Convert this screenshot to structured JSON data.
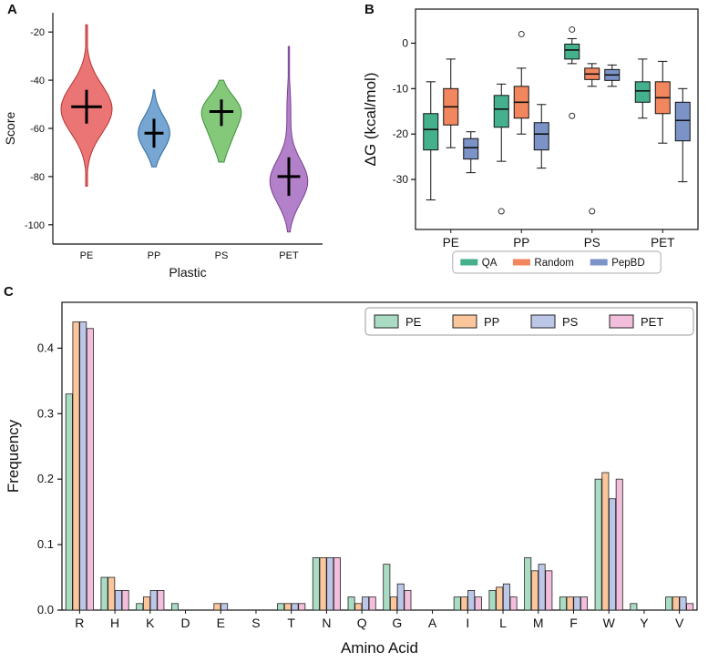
{
  "panels": {
    "a_label": "A",
    "b_label": "B",
    "c_label": "C"
  },
  "chart_data": [
    {
      "id": "panel-a",
      "type": "violin",
      "title": "",
      "xlabel": "Plastic",
      "ylabel": "Score",
      "categories": [
        "PE",
        "PP",
        "PS",
        "PET"
      ],
      "ylim": [
        -108,
        -12
      ],
      "yticks": [
        -20,
        -40,
        -60,
        -80,
        -100
      ],
      "violins": [
        {
          "category": "PE",
          "fill": "#e85d5d",
          "edge": "#b53333",
          "min": -84,
          "max": -17,
          "median": -51,
          "iqr": [
            -58,
            -44
          ],
          "width": 1.0,
          "shape": [
            {
              "mu": -52,
              "s": 10,
              "w": 1
            }
          ]
        },
        {
          "category": "PP",
          "fill": "#5e96c9",
          "edge": "#2f6aa0",
          "min": -76,
          "max": -44,
          "median": -62,
          "iqr": [
            -68,
            -56
          ],
          "width": 0.62,
          "shape": [
            {
              "mu": -62,
              "s": 7,
              "w": 1
            }
          ]
        },
        {
          "category": "PS",
          "fill": "#6fbf63",
          "edge": "#3f8f3a",
          "min": -74,
          "max": -40,
          "median": -53,
          "iqr": [
            -59,
            -48
          ],
          "width": 0.78,
          "shape": [
            {
              "mu": -52,
              "s": 6,
              "w": 1
            },
            {
              "mu": -63,
              "s": 7,
              "w": 0.55
            }
          ]
        },
        {
          "category": "PET",
          "fill": "#a66bbf",
          "edge": "#7a3f96",
          "min": -103,
          "max": -26,
          "median": -80,
          "iqr": [
            -88,
            -72
          ],
          "width": 0.74,
          "shape": [
            {
              "mu": -82,
              "s": 9,
              "w": 1
            },
            {
              "mu": -52,
              "s": 9,
              "w": 0.1
            }
          ]
        }
      ]
    },
    {
      "id": "panel-b",
      "type": "box",
      "title": "",
      "xlabel": "",
      "ylabel": "ΔG (kcal/mol)",
      "categories": [
        "PE",
        "PP",
        "PS",
        "PET"
      ],
      "ylim": [
        -41,
        7.5
      ],
      "yticks": [
        0,
        -10,
        -20,
        -30
      ],
      "legend_position": "bottom",
      "series": [
        {
          "name": "QA",
          "fill": "#45b08d",
          "boxes": [
            {
              "whislo": -34.5,
              "q1": -23.5,
              "med": -19,
              "q3": -15.5,
              "whishi": -8.5,
              "fliers": []
            },
            {
              "whislo": -26,
              "q1": -18.5,
              "med": -14.5,
              "q3": -11.5,
              "whishi": -9,
              "fliers": [
                -37
              ]
            },
            {
              "whislo": -4.5,
              "q1": -3.5,
              "med": -1.5,
              "q3": -0.2,
              "whishi": 1,
              "fliers": [
                3,
                -16
              ]
            },
            {
              "whislo": -16.5,
              "q1": -13,
              "med": -10.5,
              "q3": -8.5,
              "whishi": -3.5,
              "fliers": []
            }
          ]
        },
        {
          "name": "Random",
          "fill": "#f2875f",
          "boxes": [
            {
              "whislo": -23,
              "q1": -18,
              "med": -14,
              "q3": -10,
              "whishi": -3.5,
              "fliers": []
            },
            {
              "whislo": -20,
              "q1": -16.5,
              "med": -13,
              "q3": -9.5,
              "whishi": -5.5,
              "fliers": [
                2
              ]
            },
            {
              "whislo": -9.5,
              "q1": -8,
              "med": -6.8,
              "q3": -5.5,
              "whishi": -4.5,
              "fliers": [
                -37
              ]
            },
            {
              "whislo": -22,
              "q1": -15.5,
              "med": -12,
              "q3": -8.5,
              "whishi": -4,
              "fliers": []
            }
          ]
        },
        {
          "name": "PepBD",
          "fill": "#7b93c7",
          "boxes": [
            {
              "whislo": -28.5,
              "q1": -25.5,
              "med": -23,
              "q3": -21,
              "whishi": -19.5,
              "fliers": []
            },
            {
              "whislo": -27.5,
              "q1": -23.5,
              "med": -20,
              "q3": -17.5,
              "whishi": -13.5,
              "fliers": []
            },
            {
              "whislo": -9.5,
              "q1": -8.2,
              "med": -7,
              "q3": -5.8,
              "whishi": -4.8,
              "fliers": []
            },
            {
              "whislo": -30.5,
              "q1": -21.5,
              "med": -17,
              "q3": -13,
              "whishi": -10,
              "fliers": []
            }
          ]
        }
      ]
    },
    {
      "id": "panel-c",
      "type": "bar",
      "title": "",
      "xlabel": "Amino Acid",
      "ylabel": "Frequency",
      "categories": [
        "R",
        "H",
        "K",
        "D",
        "E",
        "S",
        "T",
        "N",
        "Q",
        "G",
        "A",
        "I",
        "L",
        "M",
        "F",
        "W",
        "Y",
        "V"
      ],
      "ylim": [
        0,
        0.47
      ],
      "yticks": [
        0.0,
        0.1,
        0.2,
        0.3,
        0.4
      ],
      "legend_position": "top-right",
      "series": [
        {
          "name": "PE",
          "fill": "#a9dcc3",
          "values": [
            0.33,
            0.05,
            0.01,
            0.01,
            0,
            0,
            0.01,
            0.08,
            0.02,
            0.07,
            0,
            0.02,
            0.03,
            0.08,
            0.02,
            0.2,
            0.01,
            0.02
          ]
        },
        {
          "name": "PP",
          "fill": "#fbc69b",
          "values": [
            0.44,
            0.05,
            0.02,
            0,
            0.01,
            0,
            0.01,
            0.08,
            0.01,
            0.02,
            0,
            0.02,
            0.035,
            0.06,
            0.02,
            0.21,
            0,
            0.02
          ]
        },
        {
          "name": "PS",
          "fill": "#bcc7e8",
          "values": [
            0.44,
            0.03,
            0.03,
            0,
            0.01,
            0,
            0.01,
            0.08,
            0.02,
            0.04,
            0,
            0.03,
            0.04,
            0.07,
            0.02,
            0.17,
            0,
            0.02
          ]
        },
        {
          "name": "PET",
          "fill": "#f3bedb",
          "values": [
            0.43,
            0.03,
            0.03,
            0,
            0,
            0,
            0.01,
            0.08,
            0.02,
            0.03,
            0,
            0.02,
            0.02,
            0.06,
            0.02,
            0.2,
            0,
            0.01
          ]
        }
      ]
    }
  ]
}
